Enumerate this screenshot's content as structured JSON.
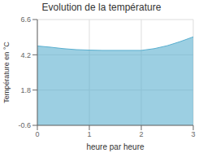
{
  "chart_data": {
    "type": "area",
    "title": "Evolution de la température",
    "xlabel": "heure par heure",
    "ylabel": "Température en °C",
    "x": [
      0,
      0.25,
      0.5,
      0.75,
      1.0,
      1.25,
      1.5,
      1.75,
      2.0,
      2.25,
      2.5,
      2.75,
      3.0
    ],
    "values": [
      4.8,
      4.72,
      4.62,
      4.55,
      4.52,
      4.5,
      4.5,
      4.5,
      4.5,
      4.62,
      4.82,
      5.1,
      5.42
    ],
    "color": "#5aafcf",
    "xlim": [
      0,
      3
    ],
    "ylim": [
      -0.6,
      6.6
    ],
    "xticks": [
      0,
      1,
      2,
      3
    ],
    "yticks": [
      -0.6,
      1.8,
      4.2,
      6.6
    ],
    "grid": true
  }
}
